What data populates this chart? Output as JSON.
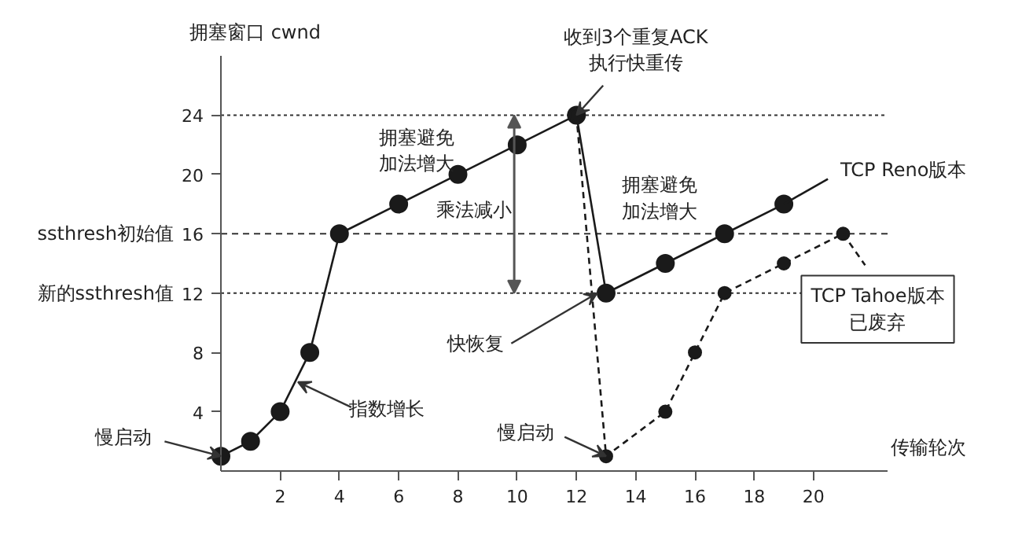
{
  "chart_data": {
    "type": "line",
    "ylabel": "拥塞窗口 cwnd",
    "xlabel": "传输轮次",
    "xlim": [
      0,
      22.5
    ],
    "ylim": [
      0,
      28
    ],
    "xticks": [
      2,
      4,
      6,
      8,
      10,
      12,
      14,
      16,
      18,
      20
    ],
    "yticks": [
      4,
      8,
      12,
      16,
      20,
      24
    ],
    "grid": false,
    "marker": "circle",
    "series": [
      {
        "name": "TCP Reno版本",
        "color": "#1a1a1a",
        "line_style": "solid",
        "x": [
          0,
          1,
          2,
          3,
          4,
          6,
          8,
          10,
          12,
          13,
          15,
          17,
          19
        ],
        "values": [
          1,
          2,
          4,
          8,
          16,
          18,
          20,
          22,
          24,
          12,
          14,
          16,
          18
        ]
      },
      {
        "name": "TCP Tahoe版本已废弃",
        "color": "#1a1a1a",
        "line_style": "dashed",
        "x": [
          12,
          13,
          15,
          16,
          17,
          19,
          21
        ],
        "values": [
          24,
          1,
          4,
          8,
          12,
          14,
          16
        ]
      }
    ],
    "ref_lines": [
      {
        "axis": "y",
        "value": 24,
        "line_style": "dotted",
        "color": "#333333"
      },
      {
        "axis": "y",
        "value": 16,
        "label": "ssthresh初始值",
        "line_style": "dashed",
        "color": "#333333"
      },
      {
        "axis": "y",
        "value": 12,
        "label": "新的ssthresh值",
        "line_style": "dotted",
        "color": "#333333"
      }
    ],
    "annotations": [
      {
        "text": "收到3个重复ACK执行快重传",
        "x": 12,
        "y": 24
      },
      "拥塞避免加法增大",
      "乘法减小",
      "拥塞避免加法增大",
      {
        "text": "快恢复",
        "x": 12.7,
        "y": 12
      },
      {
        "text": "慢启动",
        "x": 0,
        "y": 1
      },
      {
        "text": "指数增长",
        "x": 2.6,
        "y": 6
      },
      {
        "text": "慢启动",
        "x": 13,
        "y": 1
      }
    ]
  }
}
